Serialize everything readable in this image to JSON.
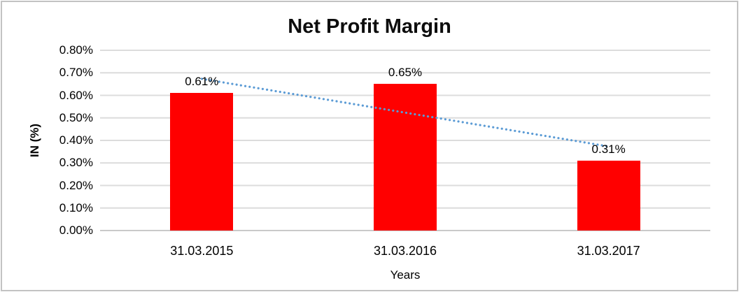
{
  "chart_data": {
    "type": "bar",
    "title": "Net Profit Margin",
    "xlabel": "Years",
    "ylabel": "IN (%)",
    "categories": [
      "31.03.2015",
      "31.03.2016",
      "31.03.2017"
    ],
    "values": [
      0.61,
      0.65,
      0.31
    ],
    "data_labels": [
      "0.61%",
      "0.65%",
      "0.31%"
    ],
    "ylim": [
      0,
      0.8
    ],
    "y_ticks": [
      "0.00%",
      "0.10%",
      "0.20%",
      "0.30%",
      "0.40%",
      "0.50%",
      "0.60%",
      "0.70%",
      "0.80%"
    ],
    "grid": true,
    "legend": false,
    "trendline": "linear-dotted",
    "colors": {
      "bar": "#ff0000",
      "trendline": "#5b9bd5",
      "gridline": "#dcdcdc",
      "axis_line": "#c9c9c9",
      "text": "#000000",
      "frame": "#c3c3c3",
      "background": "#ffffff"
    }
  }
}
